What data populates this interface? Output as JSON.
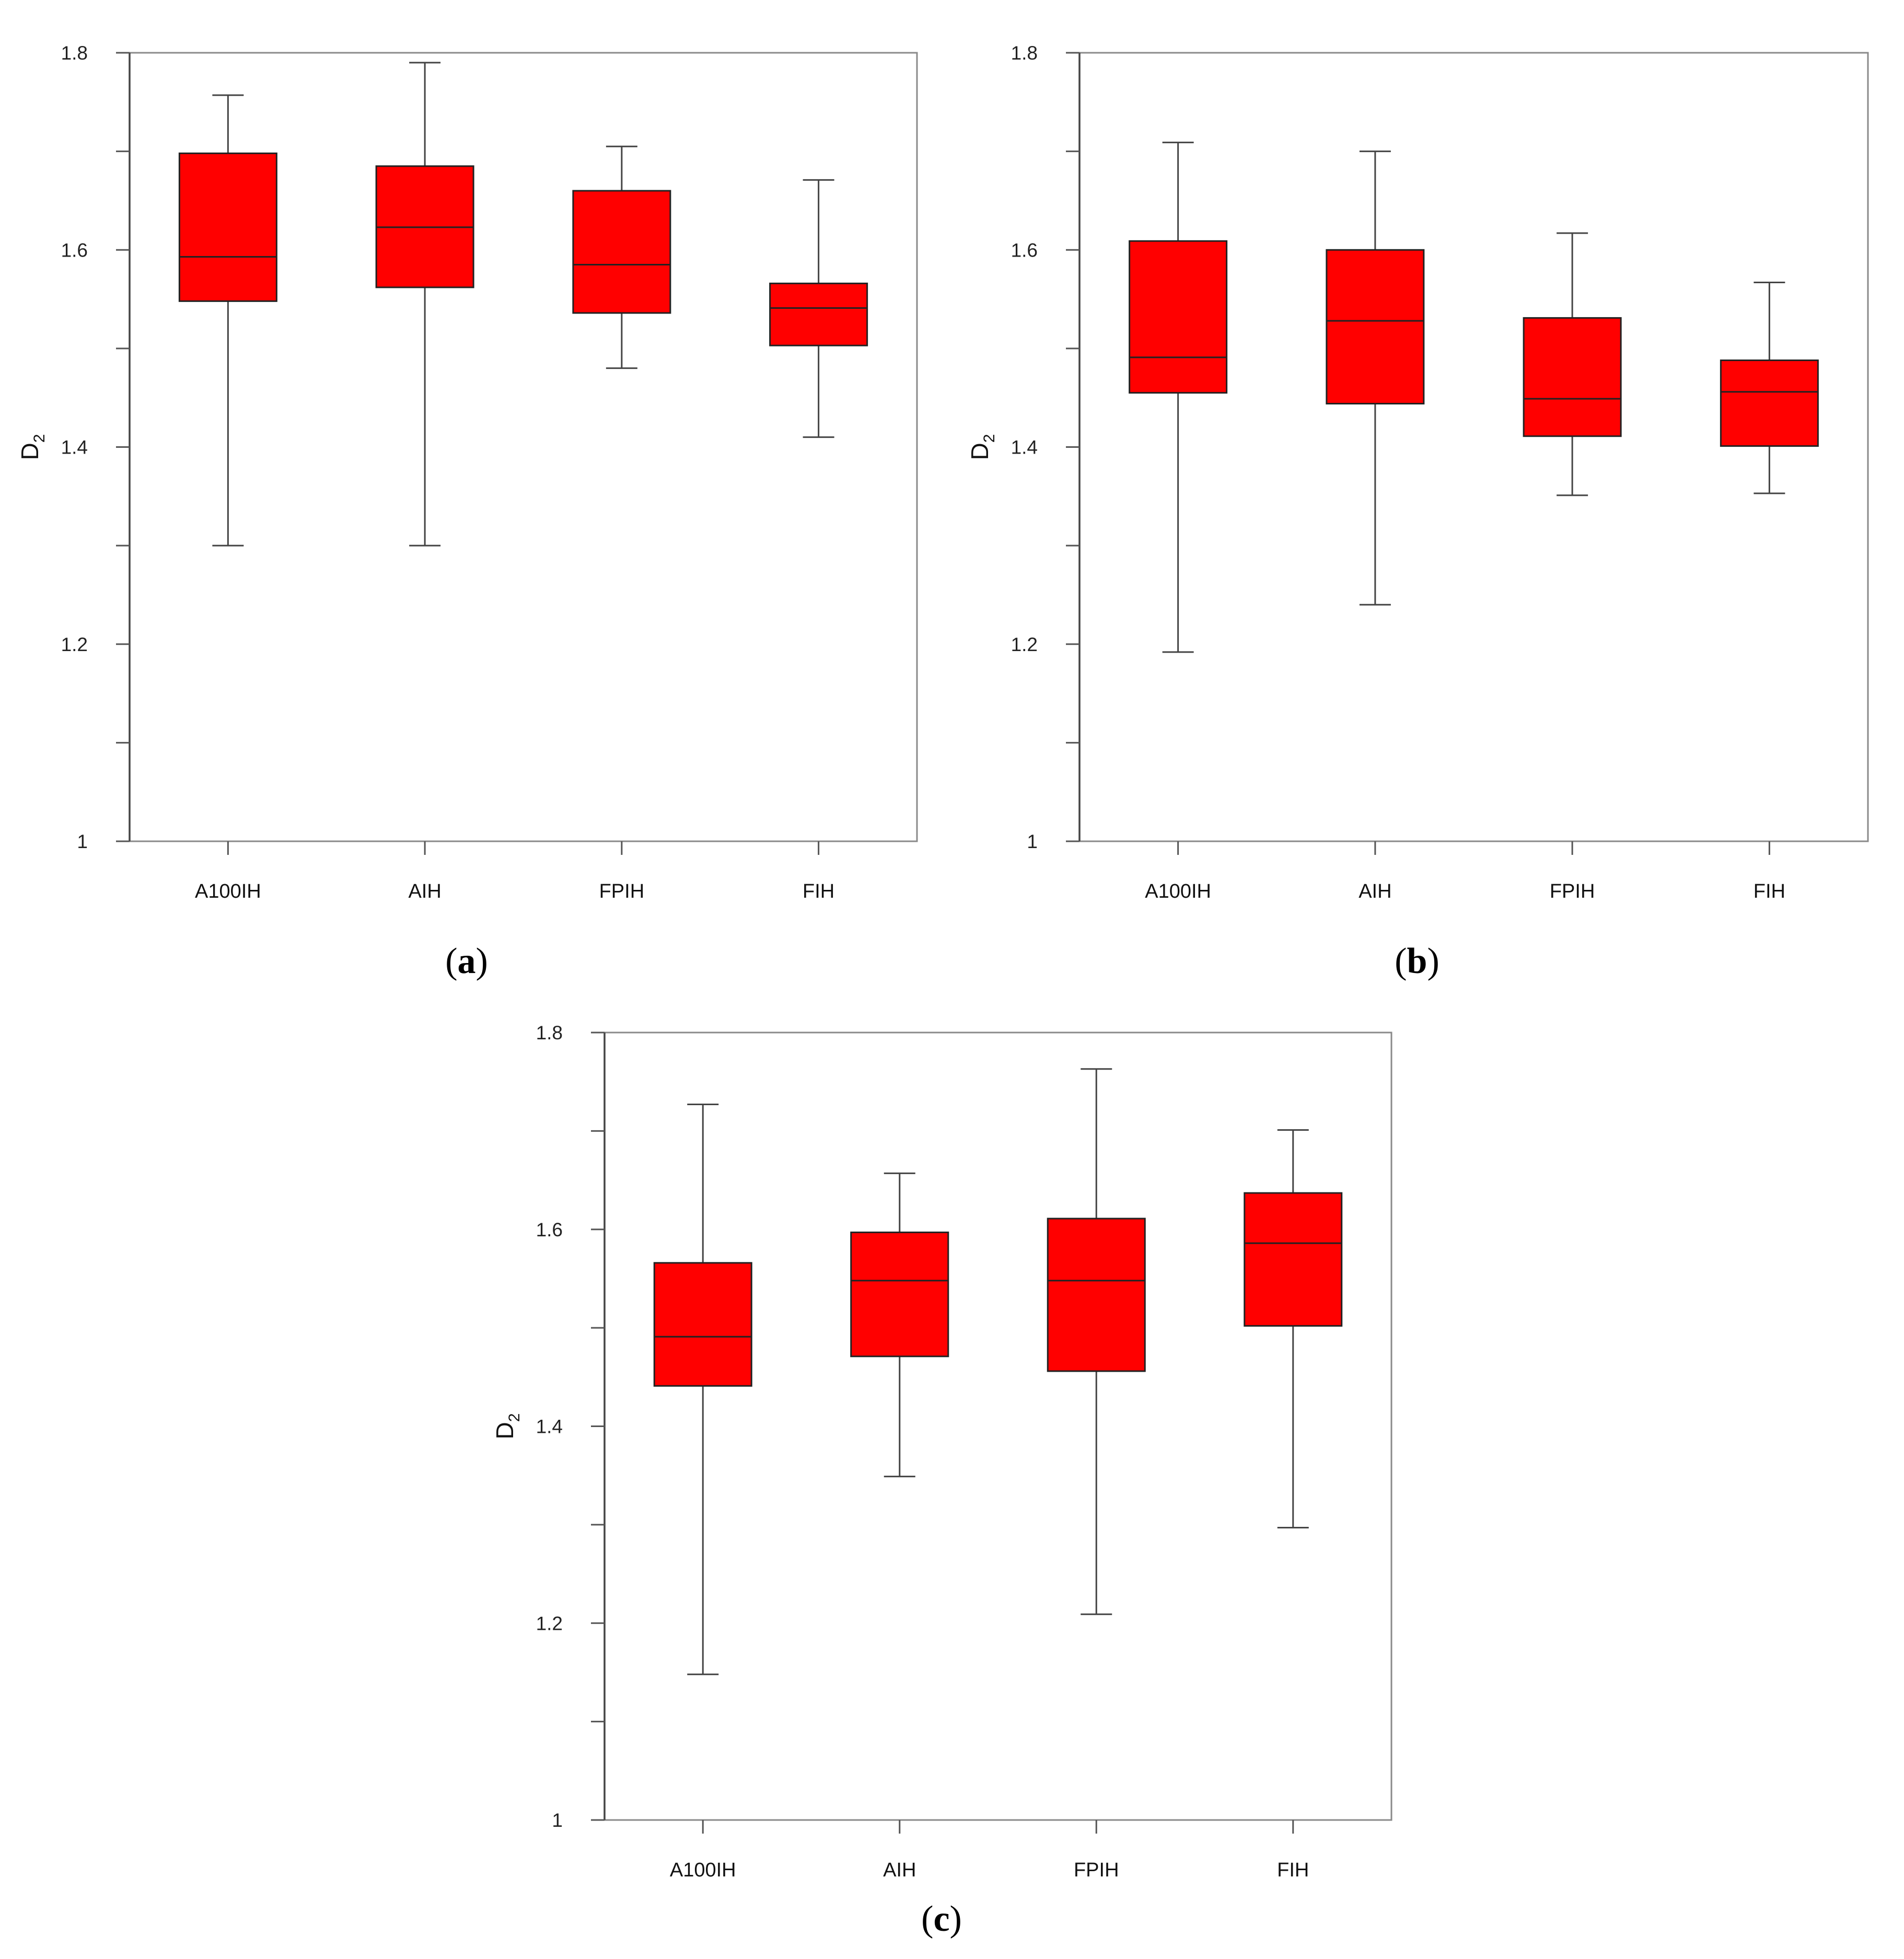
{
  "chart_data": [
    {
      "type": "box",
      "panel_label": "(a)",
      "ylabel": "D2",
      "ylim": [
        1,
        1.8
      ],
      "yticks": [
        "1",
        "1.2",
        "1.4",
        "1.6",
        "1.8"
      ],
      "categories": [
        "A100IH",
        "AIH",
        "FPIH",
        "FIH"
      ],
      "box_color": "#ff0000",
      "boxes": [
        {
          "whisker_low": 1.3,
          "q1": 1.548,
          "median": 1.593,
          "q3": 1.698,
          "whisker_high": 1.757
        },
        {
          "whisker_low": 1.3,
          "q1": 1.562,
          "median": 1.623,
          "q3": 1.685,
          "whisker_high": 1.79
        },
        {
          "whisker_low": 1.48,
          "q1": 1.536,
          "median": 1.585,
          "q3": 1.66,
          "whisker_high": 1.705
        },
        {
          "whisker_low": 1.41,
          "q1": 1.503,
          "median": 1.541,
          "q3": 1.566,
          "whisker_high": 1.671
        }
      ]
    },
    {
      "type": "box",
      "panel_label": "(b)",
      "ylabel": "D2",
      "ylim": [
        1,
        1.8
      ],
      "yticks": [
        "1",
        "1.2",
        "1.4",
        "1.6",
        "1.8"
      ],
      "categories": [
        "A100IH",
        "AIH",
        "FPIH",
        "FIH"
      ],
      "box_color": "#ff0000",
      "boxes": [
        {
          "whisker_low": 1.192,
          "q1": 1.455,
          "median": 1.491,
          "q3": 1.609,
          "whisker_high": 1.709
        },
        {
          "whisker_low": 1.24,
          "q1": 1.444,
          "median": 1.528,
          "q3": 1.6,
          "whisker_high": 1.7
        },
        {
          "whisker_low": 1.351,
          "q1": 1.411,
          "median": 1.449,
          "q3": 1.531,
          "whisker_high": 1.617
        },
        {
          "whisker_low": 1.353,
          "q1": 1.401,
          "median": 1.456,
          "q3": 1.488,
          "whisker_high": 1.567
        }
      ]
    },
    {
      "type": "box",
      "panel_label": "(c)",
      "ylabel": "D2",
      "ylim": [
        1,
        1.8
      ],
      "yticks": [
        "1",
        "1.2",
        "1.4",
        "1.6",
        "1.8"
      ],
      "categories": [
        "A100IH",
        "AIH",
        "FPIH",
        "FIH"
      ],
      "box_color": "#ff0000",
      "boxes": [
        {
          "whisker_low": 1.148,
          "q1": 1.441,
          "median": 1.491,
          "q3": 1.566,
          "whisker_high": 1.727
        },
        {
          "whisker_low": 1.349,
          "q1": 1.471,
          "median": 1.548,
          "q3": 1.597,
          "whisker_high": 1.657
        },
        {
          "whisker_low": 1.209,
          "q1": 1.456,
          "median": 1.548,
          "q3": 1.611,
          "whisker_high": 1.763
        },
        {
          "whisker_low": 1.297,
          "q1": 1.502,
          "median": 1.586,
          "q3": 1.637,
          "whisker_high": 1.701
        }
      ]
    }
  ]
}
